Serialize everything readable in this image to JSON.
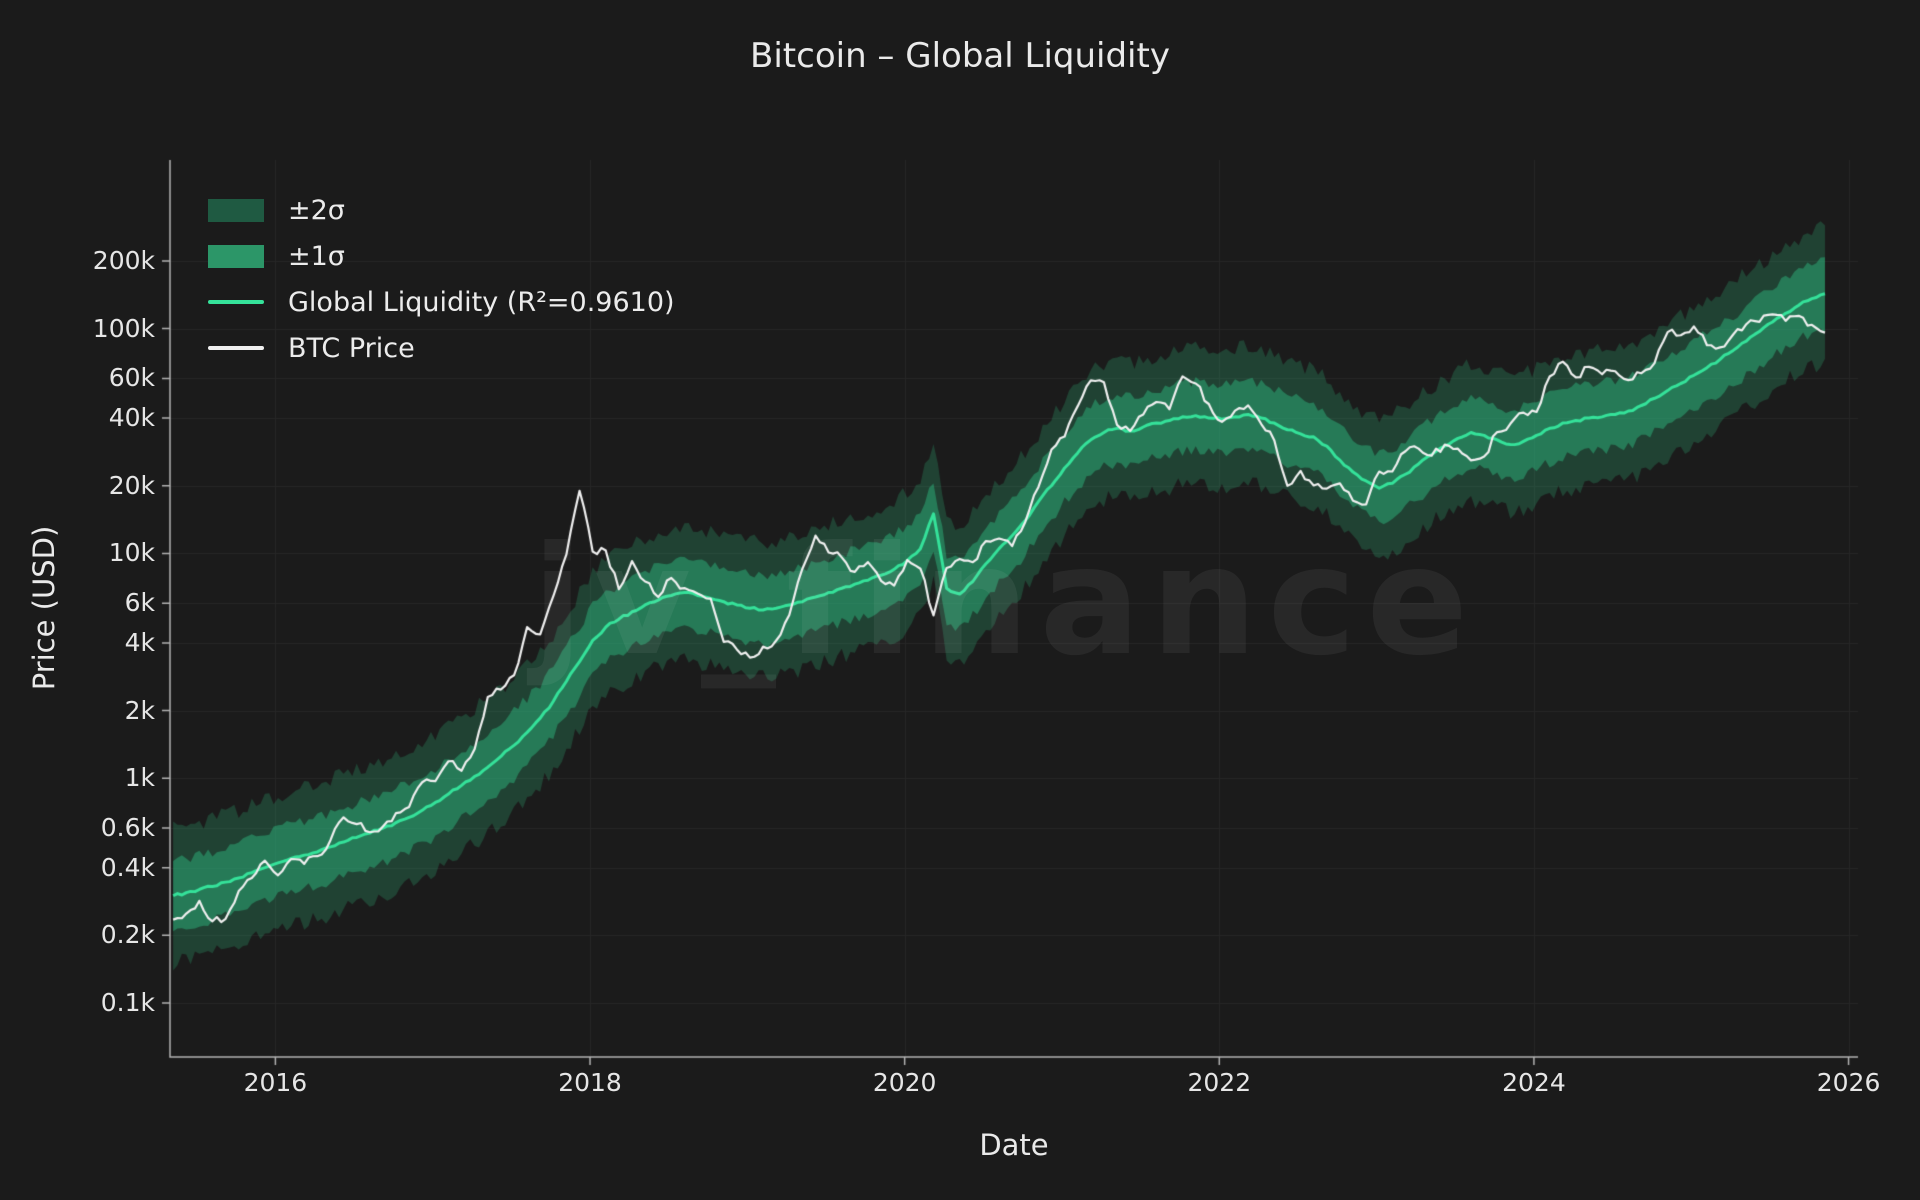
{
  "watermark": {
    "text": "jv_finance"
  },
  "colors": {
    "background": "#1b1b1b",
    "grid": "#262626",
    "spine": "#b3b3b3",
    "text": "#e6e6e6",
    "band2": "rgba(46,160,110,0.30)",
    "band1": "rgba(46,190,130,0.45)"
  },
  "chart_data": {
    "type": "line",
    "title": "Bitcoin – Global Liquidity",
    "xlabel": "Date",
    "ylabel": "Price (USD)",
    "x_scale": "linear",
    "y_scale": "log",
    "x_range": [
      2015.33,
      2026.06
    ],
    "y_log_range": [
      1.76,
      5.75
    ],
    "x_ticks": [
      {
        "value": 2016,
        "label": "2016"
      },
      {
        "value": 2018,
        "label": "2018"
      },
      {
        "value": 2020,
        "label": "2020"
      },
      {
        "value": 2022,
        "label": "2022"
      },
      {
        "value": 2024,
        "label": "2024"
      },
      {
        "value": 2026,
        "label": "2026"
      }
    ],
    "y_ticks": [
      {
        "value": 100,
        "label": "0.1k"
      },
      {
        "value": 200,
        "label": "0.2k"
      },
      {
        "value": 400,
        "label": "0.4k"
      },
      {
        "value": 600,
        "label": "0.6k"
      },
      {
        "value": 1000,
        "label": "1k"
      },
      {
        "value": 2000,
        "label": "2k"
      },
      {
        "value": 4000,
        "label": "4k"
      },
      {
        "value": 6000,
        "label": "6k"
      },
      {
        "value": 10000,
        "label": "10k"
      },
      {
        "value": 20000,
        "label": "20k"
      },
      {
        "value": 40000,
        "label": "40k"
      },
      {
        "value": 60000,
        "label": "60k"
      },
      {
        "value": 100000,
        "label": "100k"
      },
      {
        "value": 200000,
        "label": "200k"
      }
    ],
    "x_start": 2015.35,
    "x_step": 0.0833333,
    "bands": {
      "sigma1_factor": 1.42,
      "sigma2_factor": 2.0
    },
    "series": [
      {
        "name": "Global Liquidity (R²=0.9610)",
        "color": "#35e29a",
        "values": [
          300,
          310,
          320,
          330,
          345,
          360,
          380,
          400,
          420,
          440,
          455,
          470,
          495,
          520,
          545,
          570,
          600,
          635,
          670,
          720,
          780,
          850,
          930,
          1020,
          1120,
          1250,
          1400,
          1600,
          1850,
          2200,
          2700,
          3300,
          4100,
          4700,
          5100,
          5500,
          5900,
          6200,
          6500,
          6700,
          6500,
          6300,
          6100,
          5900,
          5700,
          5600,
          5700,
          5900,
          6100,
          6400,
          6700,
          7000,
          7300,
          7600,
          8000,
          8500,
          9300,
          10500,
          15000,
          7000,
          6600,
          7500,
          9000,
          10500,
          12000,
          14000,
          17000,
          20000,
          24000,
          28000,
          32000,
          34500,
          36000,
          35000,
          36500,
          38000,
          39000,
          40500,
          41000,
          40000,
          39500,
          40500,
          41500,
          40000,
          38000,
          35500,
          34000,
          33000,
          30000,
          26000,
          23000,
          21000,
          19500,
          20500,
          22500,
          25000,
          27500,
          30000,
          32500,
          34500,
          33500,
          32000,
          30500,
          31500,
          33500,
          36000,
          38000,
          39000,
          40000,
          40500,
          41500,
          43000,
          45500,
          49000,
          53000,
          57000,
          62000,
          67000,
          73000,
          80000,
          88000,
          97000,
          107000,
          117000,
          127000,
          136000,
          143000
        ]
      },
      {
        "name": "BTC Price",
        "color": "#f0f0f0",
        "values": [
          235,
          250,
          285,
          231,
          237,
          315,
          360,
          430,
          370,
          437,
          416,
          450,
          530,
          670,
          625,
          575,
          610,
          700,
          745,
          960,
          970,
          1190,
          1080,
          1350,
          2300,
          2480,
          2870,
          4700,
          4360,
          6450,
          9900,
          19000,
          10200,
          10300,
          6930,
          9240,
          7500,
          6400,
          7780,
          7010,
          6630,
          6300,
          4040,
          3740,
          3440,
          3850,
          4100,
          5320,
          8550,
          12000,
          10090,
          9600,
          8280,
          9150,
          7550,
          7190,
          9350,
          8550,
          5300,
          8620,
          9450,
          9140,
          11350,
          11650,
          10780,
          13800,
          19700,
          29000,
          33100,
          45200,
          58800,
          57750,
          37300,
          35040,
          41460,
          47160,
          43790,
          61300,
          57000,
          46200,
          38480,
          43190,
          45540,
          37640,
          31790,
          19990,
          23300,
          20050,
          19430,
          20490,
          17160,
          16540,
          23130,
          23140,
          28480,
          29250,
          27220,
          30480,
          29230,
          25930,
          26970,
          34660,
          37720,
          42280,
          42580,
          61200,
          71330,
          60640,
          67540,
          62670,
          64620,
          58970,
          63330,
          70220,
          96450,
          93430,
          102400,
          84350,
          82550,
          94180,
          104600,
          107100,
          115800,
          108200,
          114000,
          104000,
          96000
        ]
      }
    ],
    "legend": [
      {
        "label": "±2σ",
        "color": "#1f5a42",
        "type": "band"
      },
      {
        "label": "±1σ",
        "color": "#2c9668",
        "type": "band"
      },
      {
        "label": "Global Liquidity (R²=0.9610)",
        "color": "#35e29a",
        "type": "line"
      },
      {
        "label": "BTC Price",
        "color": "#f0f0f0",
        "type": "line"
      }
    ]
  }
}
